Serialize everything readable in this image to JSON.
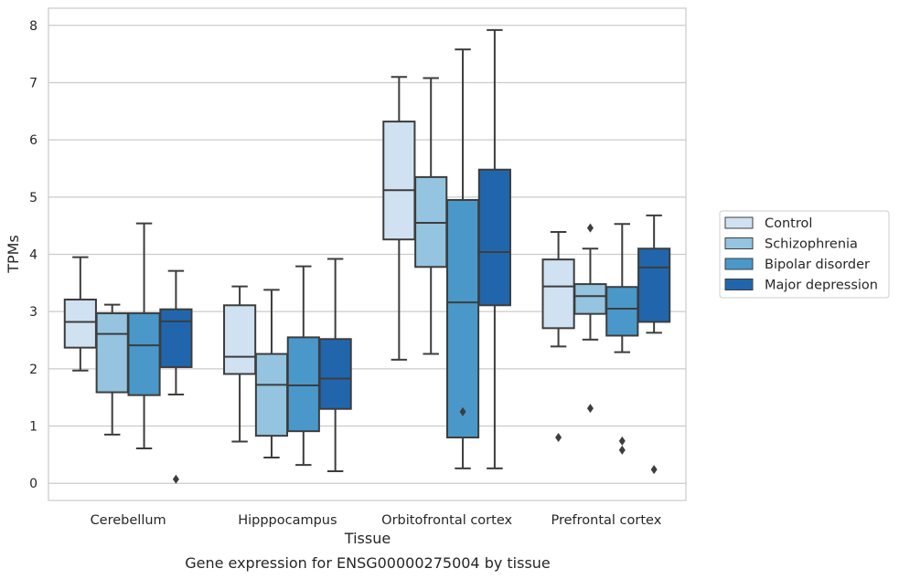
{
  "chart_data": {
    "type": "box",
    "caption": "Gene expression for ENSG00000275004 by tissue",
    "xlabel": "Tissue",
    "ylabel": "TPMs",
    "ylim": [
      -0.3,
      8.3
    ],
    "yticks": [
      0,
      1,
      2,
      3,
      4,
      5,
      6,
      7,
      8
    ],
    "grid": "horizontal",
    "legend_position": "right",
    "categories": [
      "Cerebellum",
      "Hipppocampus",
      "Orbitofrontal cortex",
      "Prefrontal cortex"
    ],
    "series": [
      {
        "name": "Control",
        "color": "#d0e1f2",
        "boxes": [
          {
            "whislo": 1.97,
            "q1": 2.37,
            "med": 2.82,
            "q3": 3.21,
            "whishi": 3.95,
            "fliers": []
          },
          {
            "whislo": 0.73,
            "q1": 1.91,
            "med": 2.21,
            "q3": 3.11,
            "whishi": 3.44,
            "fliers": []
          },
          {
            "whislo": 2.16,
            "q1": 4.26,
            "med": 5.12,
            "q3": 6.32,
            "whishi": 7.1,
            "fliers": []
          },
          {
            "whislo": 2.39,
            "q1": 2.71,
            "med": 3.44,
            "q3": 3.91,
            "whishi": 4.39,
            "fliers": [
              0.8
            ]
          }
        ]
      },
      {
        "name": "Schizophrenia",
        "color": "#94c4df",
        "boxes": [
          {
            "whislo": 0.85,
            "q1": 1.59,
            "med": 2.61,
            "q3": 2.97,
            "whishi": 3.12,
            "fliers": []
          },
          {
            "whislo": 0.45,
            "q1": 0.83,
            "med": 1.72,
            "q3": 2.26,
            "whishi": 3.38,
            "fliers": []
          },
          {
            "whislo": 2.26,
            "q1": 3.78,
            "med": 4.55,
            "q3": 5.35,
            "whishi": 7.08,
            "fliers": []
          },
          {
            "whislo": 2.51,
            "q1": 2.96,
            "med": 3.27,
            "q3": 3.48,
            "whishi": 4.1,
            "fliers": [
              1.31,
              4.46
            ]
          }
        ]
      },
      {
        "name": "Bipolar disorder",
        "color": "#4a98c9",
        "boxes": [
          {
            "whislo": 0.61,
            "q1": 1.54,
            "med": 2.41,
            "q3": 2.97,
            "whishi": 4.54,
            "fliers": []
          },
          {
            "whislo": 0.32,
            "q1": 0.91,
            "med": 1.71,
            "q3": 2.55,
            "whishi": 3.79,
            "fliers": []
          },
          {
            "whislo": 0.26,
            "q1": 0.8,
            "med": 3.16,
            "q3": 4.95,
            "whishi": 7.58,
            "fliers": [
              1.25
            ]
          },
          {
            "whislo": 2.29,
            "q1": 2.58,
            "med": 3.05,
            "q3": 3.43,
            "whishi": 4.53,
            "fliers": [
              0.58,
              0.74
            ]
          }
        ]
      },
      {
        "name": "Major depression",
        "color": "#2166ac",
        "boxes": [
          {
            "whislo": 1.55,
            "q1": 2.03,
            "med": 2.83,
            "q3": 3.04,
            "whishi": 3.71,
            "fliers": [
              0.07
            ]
          },
          {
            "whislo": 0.21,
            "q1": 1.3,
            "med": 1.83,
            "q3": 2.52,
            "whishi": 3.92,
            "fliers": []
          },
          {
            "whislo": 0.26,
            "q1": 3.11,
            "med": 4.04,
            "q3": 5.48,
            "whishi": 7.92,
            "fliers": []
          },
          {
            "whislo": 2.63,
            "q1": 2.82,
            "med": 3.77,
            "q3": 4.1,
            "whishi": 4.68,
            "fliers": [
              0.24
            ]
          }
        ]
      }
    ]
  }
}
